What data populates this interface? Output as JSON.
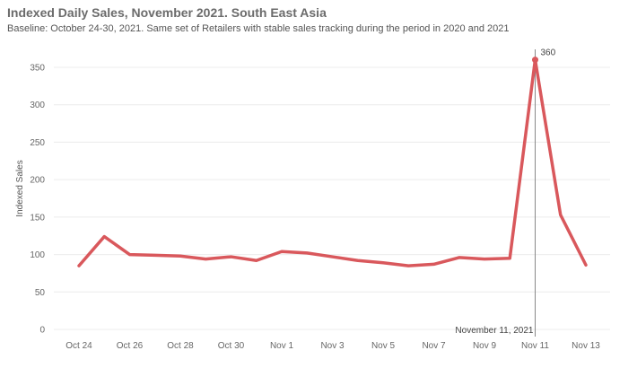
{
  "chart_data": {
    "type": "line",
    "title": "Indexed Daily Sales, November 2021. South East Asia",
    "subtitle": "Baseline: October 24-30, 2021. Same set of Retailers with stable sales tracking during the period in 2020 and 2021",
    "xlabel": "",
    "ylabel": "Indexed Sales",
    "ylim": [
      0,
      380
    ],
    "yticks": [
      0,
      50,
      100,
      150,
      200,
      250,
      300,
      350
    ],
    "x_ticks": [
      "Oct 24",
      "Oct 26",
      "Oct 28",
      "Oct 30",
      "Nov 1",
      "Nov 3",
      "Nov 5",
      "Nov 7",
      "Nov 9",
      "Nov 11",
      "Nov 13"
    ],
    "x": [
      "Oct 24",
      "Oct 25",
      "Oct 26",
      "Oct 27",
      "Oct 28",
      "Oct 29",
      "Oct 30",
      "Oct 31",
      "Nov 1",
      "Nov 2",
      "Nov 3",
      "Nov 4",
      "Nov 5",
      "Nov 6",
      "Nov 7",
      "Nov 8",
      "Nov 9",
      "Nov 10",
      "Nov 11",
      "Nov 12",
      "Nov 13"
    ],
    "series": [
      {
        "values": [
          85,
          124,
          100,
          99,
          98,
          94,
          97,
          92,
          104,
          102,
          97,
          92,
          89,
          85,
          87,
          96,
          94,
          95,
          360,
          153,
          86
        ],
        "color": "#d9585c"
      }
    ],
    "annotations": [
      {
        "label": "360",
        "x": "Nov 11",
        "y": 360
      },
      {
        "label": "November 11, 2021",
        "x": "Nov 11",
        "type": "reference-line"
      }
    ],
    "grid": true,
    "legend": "none"
  }
}
